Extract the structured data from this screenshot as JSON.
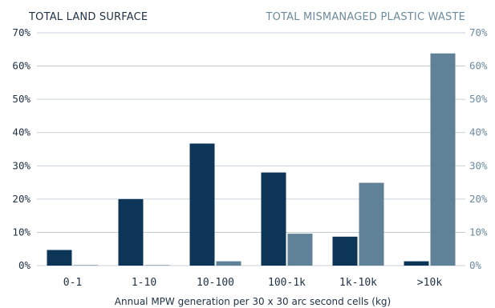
{
  "chart_data": {
    "type": "bar",
    "categories": [
      "0-1",
      "1-10",
      "10-100",
      "100-1k",
      "1k-10k",
      ">10k"
    ],
    "series": [
      {
        "name": "TOTAL LAND SURFACE",
        "color": "#0d3557",
        "values": [
          4.7,
          20.0,
          36.7,
          28.0,
          8.7,
          1.3
        ]
      },
      {
        "name": "TOTAL MISMANAGED PLASTIC WASTE",
        "color": "#5f8298",
        "values": [
          0.1,
          0.1,
          1.3,
          9.6,
          24.9,
          63.8
        ]
      }
    ],
    "ylim": [
      0,
      70
    ],
    "yticks": [
      0,
      10,
      20,
      30,
      40,
      50,
      60,
      70
    ],
    "left_tick_labels": [
      "0%",
      "10%",
      "20%",
      "30%",
      "40%",
      "50%",
      "60%",
      "70%"
    ],
    "right_tick_labels": [
      "0%",
      "10%",
      "20%",
      "30%",
      "40%",
      "50%",
      "60%",
      "70%"
    ],
    "xlabel": "Annual MPW generation per 30 x 30 arc second cells (kg)",
    "ylabel": "",
    "grid": true,
    "colors": {
      "grid": "#b9c3cb",
      "left_axis_text": "#223247",
      "right_axis_text": "#6b8a9e",
      "left_title": "#223247",
      "right_title": "#6b8a9e"
    }
  }
}
